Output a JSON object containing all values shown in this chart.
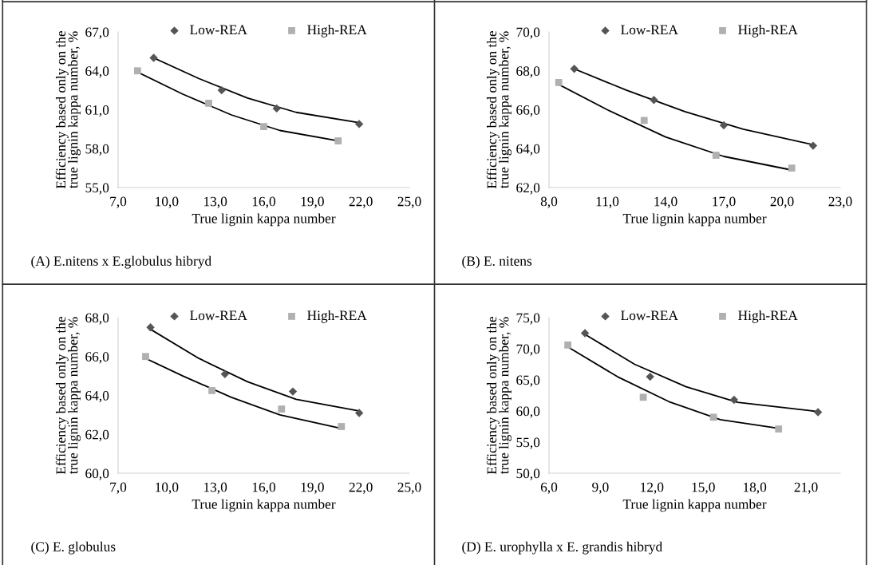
{
  "chart_data": [
    {
      "type": "scatter",
      "xlabel": "True lignin kappa number",
      "ylabel": "Efficiency based only on the\ntrue lignin kappa number, %",
      "annotations": [
        "(A) E.nitens x E.globulus hibryd"
      ],
      "legend": "top",
      "grid": false,
      "xlim": [
        7,
        25
      ],
      "xticks": [
        {
          "value": 7,
          "label": "7,0"
        },
        {
          "value": 10,
          "label": "10,0"
        },
        {
          "value": 13,
          "label": "13,0"
        },
        {
          "value": 16,
          "label": "16,0"
        },
        {
          "value": 19,
          "label": "19,0"
        },
        {
          "value": 22,
          "label": "22,0"
        },
        {
          "value": 25,
          "label": "25,0"
        }
      ],
      "ylim": [
        55,
        67
      ],
      "yticks": [
        {
          "value": 55,
          "label": "55,0"
        },
        {
          "value": 58,
          "label": "58,0"
        },
        {
          "value": 61,
          "label": "61,0"
        },
        {
          "value": 64,
          "label": "64,0"
        },
        {
          "value": 67,
          "label": "67,0"
        }
      ],
      "series": [
        {
          "name": "Low-REA",
          "marker": "diamond",
          "color": "#555555",
          "x": [
            9.2,
            13.4,
            16.8,
            21.9
          ],
          "values": [
            65.0,
            62.5,
            61.1,
            59.9
          ]
        },
        {
          "name": "High-REA",
          "marker": "square",
          "color": "#b0b0b0",
          "x": [
            8.2,
            12.6,
            16.0,
            20.6
          ],
          "values": [
            64.0,
            61.5,
            59.7,
            58.6
          ]
        },
        {
          "type": "line",
          "color": "#000000",
          "x": [
            9.2,
            12,
            15,
            18,
            21.9
          ],
          "values": [
            65.0,
            63.4,
            61.9,
            60.8,
            60.0
          ]
        },
        {
          "type": "line",
          "color": "#000000",
          "x": [
            8.2,
            11,
            14,
            17,
            20.6
          ],
          "values": [
            63.9,
            62.2,
            60.6,
            59.4,
            58.6
          ]
        }
      ]
    },
    {
      "type": "scatter",
      "xlabel": "True lignin kappa number",
      "ylabel": "Efficiency based only on the\ntrue lignin kappa number, %",
      "annotations": [
        "(B) E. nitens"
      ],
      "legend": "top",
      "grid": false,
      "xlim": [
        8,
        23
      ],
      "xticks": [
        {
          "value": 8,
          "label": "8,0"
        },
        {
          "value": 11,
          "label": "11,0"
        },
        {
          "value": 14,
          "label": "14,0"
        },
        {
          "value": 17,
          "label": "17,0"
        },
        {
          "value": 20,
          "label": "20,0"
        },
        {
          "value": 23,
          "label": "23,0"
        }
      ],
      "ylim": [
        62,
        70
      ],
      "yticks": [
        {
          "value": 62,
          "label": "62,0"
        },
        {
          "value": 64,
          "label": "64,0"
        },
        {
          "value": 66,
          "label": "66,0"
        },
        {
          "value": 68,
          "label": "68,0"
        },
        {
          "value": 70,
          "label": "70,0"
        }
      ],
      "series": [
        {
          "name": "Low-REA",
          "marker": "diamond",
          "color": "#555555",
          "x": [
            9.3,
            13.4,
            17.0,
            21.6
          ],
          "values": [
            68.1,
            66.5,
            65.2,
            64.15
          ]
        },
        {
          "name": "High-REA",
          "marker": "square",
          "color": "#b0b0b0",
          "x": [
            8.5,
            12.9,
            16.6,
            20.5
          ],
          "values": [
            67.4,
            65.45,
            63.66,
            63.0
          ]
        },
        {
          "type": "line",
          "color": "#000000",
          "x": [
            9.3,
            12,
            15,
            18,
            21.6
          ],
          "values": [
            68.1,
            67.0,
            65.9,
            65.0,
            64.2
          ]
        },
        {
          "type": "line",
          "color": "#000000",
          "x": [
            8.5,
            11,
            14,
            17,
            20.5
          ],
          "values": [
            67.3,
            66.0,
            64.6,
            63.6,
            62.9
          ]
        }
      ]
    },
    {
      "type": "scatter",
      "xlabel": "True lignin kappa number",
      "ylabel": "Efficiency based only on the\ntrue lignin kappa number, %",
      "annotations": [
        "(C) E. globulus"
      ],
      "legend": "top",
      "grid": false,
      "xlim": [
        7,
        25
      ],
      "xticks": [
        {
          "value": 7,
          "label": "7,0"
        },
        {
          "value": 10,
          "label": "10,0"
        },
        {
          "value": 13,
          "label": "13,0"
        },
        {
          "value": 16,
          "label": "16,0"
        },
        {
          "value": 19,
          "label": "19,0"
        },
        {
          "value": 22,
          "label": "22,0"
        },
        {
          "value": 25,
          "label": "25,0"
        }
      ],
      "ylim": [
        60,
        68
      ],
      "yticks": [
        {
          "value": 60,
          "label": "60,0"
        },
        {
          "value": 62,
          "label": "62,0"
        },
        {
          "value": 64,
          "label": "64,0"
        },
        {
          "value": 66,
          "label": "66,0"
        },
        {
          "value": 68,
          "label": "68,0"
        }
      ],
      "series": [
        {
          "name": "Low-REA",
          "marker": "diamond",
          "color": "#555555",
          "x": [
            9.0,
            13.6,
            17.8,
            21.9
          ],
          "values": [
            67.5,
            65.1,
            64.2,
            63.1
          ]
        },
        {
          "name": "High-REA",
          "marker": "square",
          "color": "#b0b0b0",
          "x": [
            8.7,
            12.8,
            17.1,
            20.8
          ],
          "values": [
            66.0,
            64.25,
            63.3,
            62.4
          ]
        },
        {
          "type": "line",
          "color": "#000000",
          "x": [
            9.0,
            12,
            15,
            18,
            21.9
          ],
          "values": [
            67.4,
            65.9,
            64.7,
            63.8,
            63.2
          ]
        },
        {
          "type": "line",
          "color": "#000000",
          "x": [
            8.7,
            11,
            14,
            17,
            20.8
          ],
          "values": [
            65.9,
            65.0,
            63.9,
            63.0,
            62.3
          ]
        }
      ]
    },
    {
      "type": "scatter",
      "xlabel": "True lignin kappa number",
      "ylabel": "Efficiency based only on the\ntrue lignin kappa number, %",
      "annotations": [
        "(D) E. urophylla x E. grandis hibryd"
      ],
      "legend": "top",
      "grid": false,
      "xlim": [
        6,
        23
      ],
      "xticks": [
        {
          "value": 6,
          "label": "6,0"
        },
        {
          "value": 9,
          "label": "9,0"
        },
        {
          "value": 12,
          "label": "12,0"
        },
        {
          "value": 15,
          "label": "15,0"
        },
        {
          "value": 18,
          "label": "18,0"
        },
        {
          "value": 21,
          "label": "21,0"
        }
      ],
      "ylim": [
        50,
        75
      ],
      "yticks": [
        {
          "value": 50,
          "label": "50,0"
        },
        {
          "value": 55,
          "label": "55,0"
        },
        {
          "value": 60,
          "label": "60,0"
        },
        {
          "value": 65,
          "label": "65,0"
        },
        {
          "value": 70,
          "label": "70,0"
        },
        {
          "value": 75,
          "label": "75,0"
        }
      ],
      "series": [
        {
          "name": "Low-REA",
          "marker": "diamond",
          "color": "#555555",
          "x": [
            8.1,
            11.9,
            16.8,
            21.7
          ],
          "values": [
            72.5,
            65.5,
            61.8,
            59.8
          ]
        },
        {
          "name": "High-REA",
          "marker": "square",
          "color": "#b0b0b0",
          "x": [
            7.1,
            11.5,
            15.6,
            19.4
          ],
          "values": [
            70.6,
            62.2,
            59.0,
            57.1
          ]
        },
        {
          "type": "line",
          "color": "#000000",
          "x": [
            8.1,
            11,
            14,
            17,
            21.7
          ],
          "values": [
            72.3,
            67.5,
            63.9,
            61.4,
            59.9
          ]
        },
        {
          "type": "line",
          "color": "#000000",
          "x": [
            7.1,
            10,
            13,
            16,
            19.4
          ],
          "values": [
            70.3,
            65.5,
            61.5,
            58.6,
            57.2
          ]
        }
      ]
    }
  ]
}
